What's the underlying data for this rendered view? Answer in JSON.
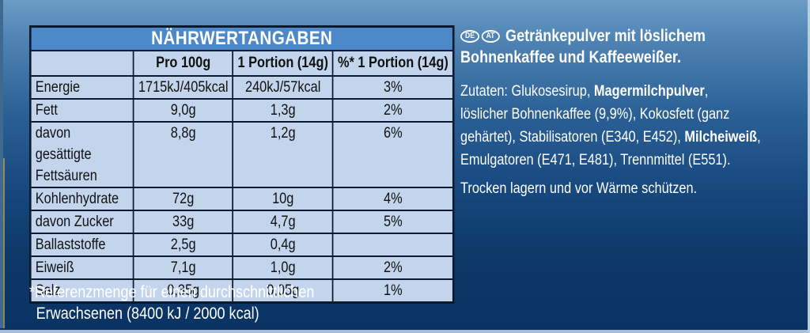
{
  "nutrition_table": {
    "title": "NÄHRWERTANGABEN",
    "columns": [
      "",
      "Pro 100g",
      "1 Portion (14g)",
      "%* 1 Portion (14g)"
    ],
    "rows": [
      {
        "label": "Energie",
        "per100": "1715kJ/405kcal",
        "portion": "240kJ/57kcal",
        "percent": "3%"
      },
      {
        "label": "Fett",
        "per100": "9,0g",
        "portion": "1,3g",
        "percent": "2%"
      },
      {
        "label": "davon gesättigte Fettsäuren",
        "label_line1": "davon gesättigte",
        "label_line2": "Fettsäuren",
        "per100": "8,8g",
        "portion": "1,2g",
        "percent": "6%"
      },
      {
        "label": "Kohlenhydrate",
        "per100": "72g",
        "portion": "10g",
        "percent": "4%"
      },
      {
        "label": "davon Zucker",
        "per100": "33g",
        "portion": "4,7g",
        "percent": "5%"
      },
      {
        "label": "Ballaststoffe",
        "per100": "2,5g",
        "portion": "0,4g",
        "percent": ""
      },
      {
        "label": "Eiweiß",
        "per100": "7,1g",
        "portion": "1,0g",
        "percent": "2%"
      },
      {
        "label": "Salz",
        "per100": "0,35g",
        "portion": "0,05g",
        "percent": "1%"
      }
    ]
  },
  "footnote": {
    "line1": "*Referenzmenge für einen durchschnittlichen",
    "line2": "Erwachsenen (8400 kJ / 2000 kcal)"
  },
  "product": {
    "country_badges": [
      "DE",
      "AT"
    ],
    "title_line1": "Getränkepulver mit löslichem",
    "title_line2": "Bohnenkaffee und Kaffeeweißer."
  },
  "ingredients": {
    "l1_a": "Zutaten: Glukosesirup, ",
    "l1_b": "Magermilchpulver",
    "l1_c": ",",
    "l2": "löslicher Bohnenkaffee (9,9%), Kokosfett (ganz",
    "l3_a": "gehärtet), Stabilisatoren (E340, E452), ",
    "l3_b": "Milcheiweiß",
    "l3_c": ",",
    "l4": "Emulgatoren (E471, E481), Trennmittel (E551)."
  },
  "storage": "Trocken lagern und vor Wärme schützen.",
  "colors": {
    "table_header_bg": "#4d88c9",
    "table_cell_bg": "#c3d5ec",
    "table_border": "#0c1a2e",
    "panel_top": "#6a9cc4",
    "panel_bottom": "#0a3363",
    "text_light": "#ffffff"
  }
}
